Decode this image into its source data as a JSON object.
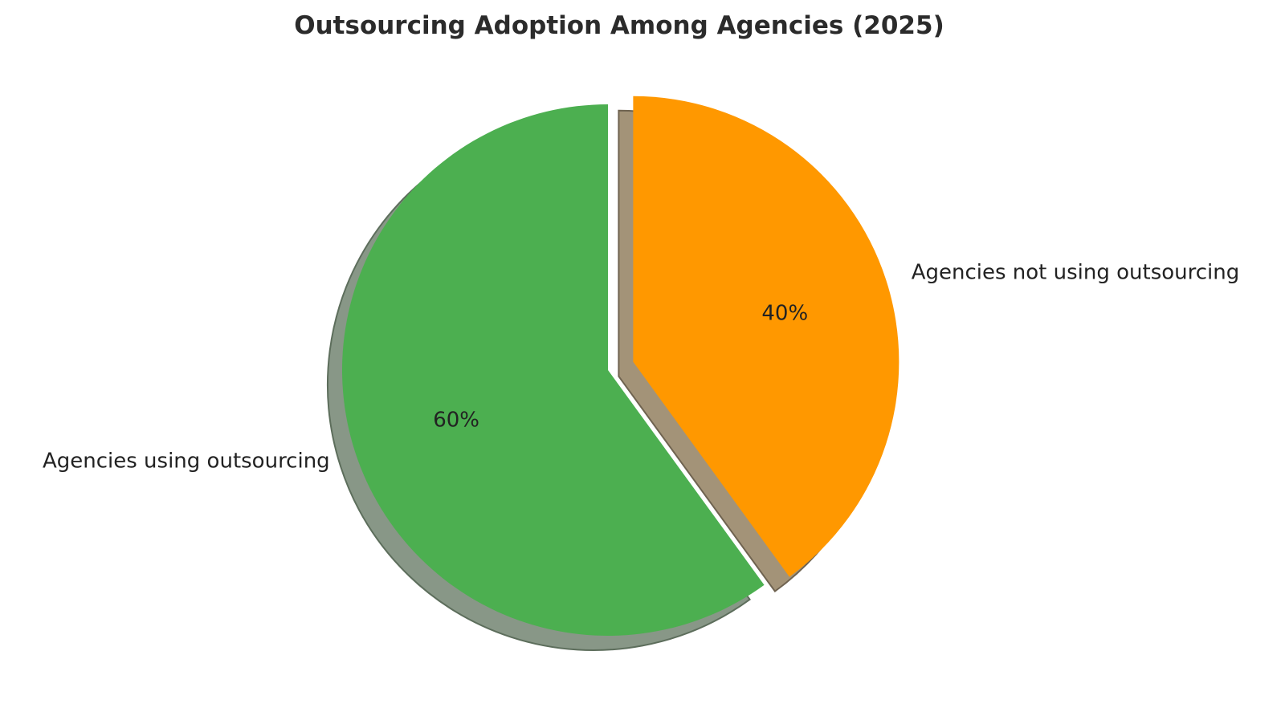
{
  "chart_data": {
    "type": "pie",
    "title": "Outsourcing Adoption Among Agencies (2025)",
    "start_angle_deg": 90,
    "direction": "counterclockwise",
    "shadow": true,
    "slices": [
      {
        "label": "Agencies using outsourcing",
        "value": 60,
        "pct_label": "60%",
        "color": "#4caf50",
        "exploded": false
      },
      {
        "label": "Agencies not using outsourcing",
        "value": 40,
        "pct_label": "40%",
        "color": "#ff9800",
        "exploded": true
      }
    ]
  }
}
